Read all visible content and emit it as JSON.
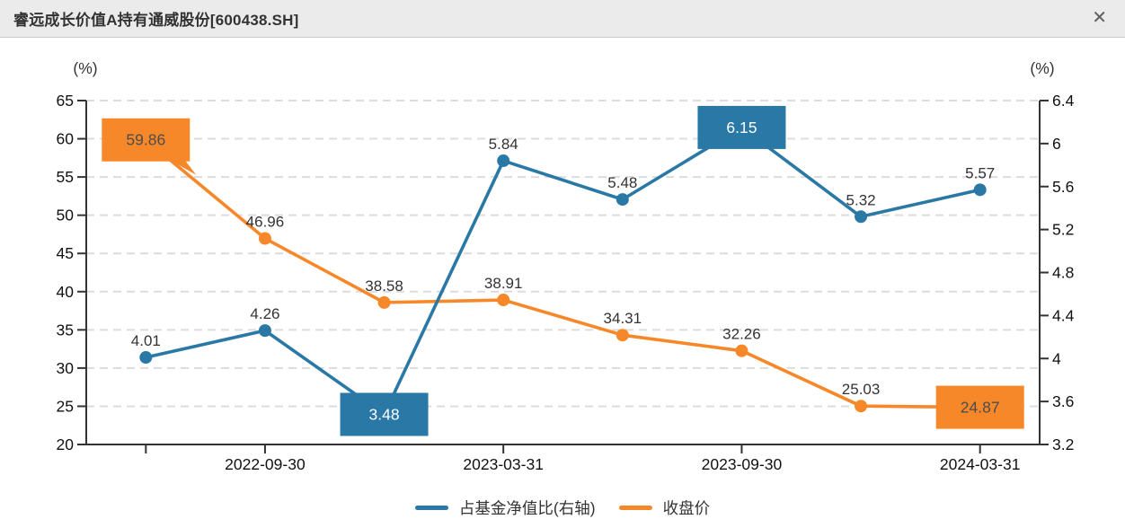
{
  "window": {
    "title": "睿远成长价值A持有通威股份[600438.SH]",
    "close_icon": "✕"
  },
  "chart_data": {
    "type": "line",
    "title": "睿远成长价值A持有通威股份[600438.SH]",
    "x_tick_labels": [
      "2022-09-30",
      "2023-03-31",
      "2023-09-30",
      "2024-03-31"
    ],
    "labeled_point_indices": [
      1,
      3,
      5,
      7
    ],
    "axis_tick_point_indices": [
      0,
      1,
      3,
      5,
      7
    ],
    "num_points": 8,
    "left_axis": {
      "unit": "(%)",
      "min": 20,
      "max": 65,
      "step": 5,
      "tick_labels": [
        "20",
        "25",
        "30",
        "35",
        "40",
        "45",
        "50",
        "55",
        "60",
        "65"
      ]
    },
    "right_axis": {
      "unit": "(%)",
      "min": 3.2,
      "max": 6.4,
      "step": 0.4,
      "tick_labels": [
        "3.2",
        "3.6",
        "4",
        "4.4",
        "4.8",
        "5.2",
        "5.6",
        "6",
        "6.4"
      ]
    },
    "grid": {
      "horizontal_dashed": true
    },
    "legend": {
      "position": "bottom",
      "items": [
        "占基金净值比(右轴)",
        "收盘价"
      ]
    },
    "series": [
      {
        "name": "占基金净值比(右轴)",
        "axis": "right",
        "color": "#2a78a5",
        "values": [
          4.01,
          4.26,
          3.48,
          5.84,
          5.48,
          6.15,
          5.32,
          5.57
        ],
        "boxed_points": [
          2,
          5
        ],
        "box_text_color": "#ffffff",
        "box_tails": {}
      },
      {
        "name": "收盘价",
        "axis": "left",
        "color": "#f7882a",
        "values": [
          59.86,
          46.96,
          38.58,
          38.91,
          34.31,
          32.26,
          25.03,
          24.87
        ],
        "boxed_points": [
          0,
          7
        ],
        "box_text_color": "#4d4d4d",
        "box_tails": {
          "0": "bottom-right"
        }
      }
    ],
    "colors": {
      "axis_line": "#333333",
      "grid_line": "#dcdcdc",
      "label_text": "#333333",
      "tick_label_text": "#111111"
    }
  }
}
